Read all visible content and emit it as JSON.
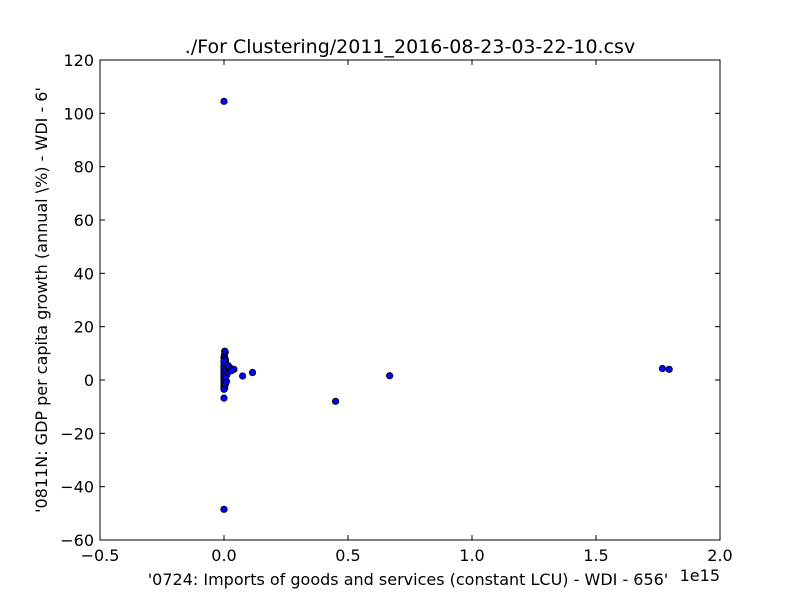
{
  "chart_data": {
    "type": "scatter",
    "title": "./For Clustering/2011_2016-08-23-03-22-10.csv",
    "xlabel": "'0724: Imports of goods and services  (constant LCU) - WDI - 656'",
    "ylabel": "'0811N: GDP per capita growth  (annual \\%) - WDI - 6'",
    "x_offset_label": "1e15",
    "xlim": [
      -0.5,
      2.0
    ],
    "ylim": [
      -60,
      120
    ],
    "x_ticks": [
      -0.5,
      0.0,
      0.5,
      1.0,
      1.5,
      2.0
    ],
    "x_tick_labels": [
      "−0.5",
      "0.0",
      "0.5",
      "1.0",
      "1.5",
      "2.0"
    ],
    "y_ticks": [
      -60,
      -40,
      -20,
      0,
      20,
      40,
      60,
      80,
      100,
      120
    ],
    "y_tick_labels": [
      "−60",
      "−40",
      "−20",
      "0",
      "20",
      "40",
      "60",
      "80",
      "100",
      "120"
    ],
    "grid": false,
    "marker_color": "#0000ff",
    "marker_edge": "#000000",
    "series": [
      {
        "x": [
          0.0,
          0.0,
          0.003,
          0.005,
          0.002,
          0.0,
          0.004,
          0.006,
          0.001,
          0.0,
          0.008,
          0.003,
          0.0,
          0.002,
          0.001,
          0.0,
          0.005,
          0.0,
          0.002,
          0.003,
          0.0,
          0.001,
          0.0,
          0.004,
          0.002,
          0.0,
          0.001,
          0.0,
          0.003,
          0.0,
          0.0,
          0.0,
          0.002,
          0.001,
          0.0,
          0.0,
          0.003,
          0.0,
          0.0,
          0.02,
          0.025,
          0.04,
          0.03,
          0.015,
          0.012,
          0.006,
          0.01,
          0.005,
          0.075,
          0.115,
          0.45,
          0.668,
          1.768,
          1.795
        ],
        "y": [
          104.5,
          -48.5,
          10.8,
          10.5,
          9.5,
          8.5,
          8.0,
          7.5,
          7.0,
          6.5,
          6.0,
          5.5,
          5.0,
          4.5,
          4.0,
          3.5,
          3.0,
          2.5,
          2.0,
          1.5,
          1.0,
          0.5,
          0.0,
          -0.5,
          -1.0,
          -1.5,
          -2.0,
          -2.5,
          -3.0,
          -3.5,
          -1.0,
          1.8,
          2.2,
          3.2,
          4.2,
          5.2,
          6.2,
          7.2,
          -6.8,
          5.0,
          4.5,
          4.0,
          3.5,
          5.5,
          2.0,
          -1.5,
          -0.5,
          1.0,
          1.5,
          2.8,
          -8.0,
          1.6,
          4.3,
          4.0
        ]
      }
    ]
  }
}
